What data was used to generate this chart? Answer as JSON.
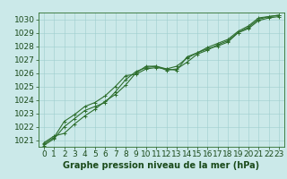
{
  "xlabel": "Graphe pression niveau de la mer (hPa)",
  "bg_color": "#cbe9e9",
  "grid_color": "#9ecece",
  "line_color": "#2d6e2d",
  "ylim": [
    1020.5,
    1030.5
  ],
  "xlim": [
    -0.5,
    23.5
  ],
  "yticks": [
    1021,
    1022,
    1023,
    1024,
    1025,
    1026,
    1027,
    1028,
    1029,
    1030
  ],
  "xticks": [
    0,
    1,
    2,
    3,
    4,
    5,
    6,
    7,
    8,
    9,
    10,
    11,
    12,
    13,
    14,
    15,
    16,
    17,
    18,
    19,
    20,
    21,
    22,
    23
  ],
  "series": [
    [
      1020.8,
      1021.3,
      1021.5,
      1022.2,
      1022.8,
      1023.3,
      1023.9,
      1024.4,
      1025.1,
      1026.0,
      1026.5,
      1026.5,
      1026.3,
      1026.2,
      1027.2,
      1027.5,
      1027.8,
      1028.0,
      1028.3,
      1029.0,
      1029.4,
      1030.0,
      1030.2,
      1030.3
    ],
    [
      1020.7,
      1021.2,
      1022.4,
      1022.9,
      1023.5,
      1023.8,
      1024.3,
      1025.0,
      1025.8,
      1025.9,
      1026.3,
      1026.4,
      1026.3,
      1026.5,
      1027.1,
      1027.5,
      1027.9,
      1028.2,
      1028.5,
      1029.1,
      1029.5,
      1030.1,
      1030.2,
      1030.3
    ],
    [
      1020.6,
      1021.1,
      1022.0,
      1022.6,
      1023.2,
      1023.5,
      1023.8,
      1024.6,
      1025.5,
      1026.1,
      1026.4,
      1026.5,
      1026.2,
      1026.3,
      1026.8,
      1027.4,
      1027.7,
      1028.1,
      1028.4,
      1029.0,
      1029.3,
      1029.9,
      1030.1,
      1030.2
    ]
  ],
  "marker": "+",
  "markersize": 3,
  "linewidth": 0.8,
  "font_color": "#1a4a1a",
  "xlabel_fontsize": 7,
  "tick_fontsize": 6.5
}
